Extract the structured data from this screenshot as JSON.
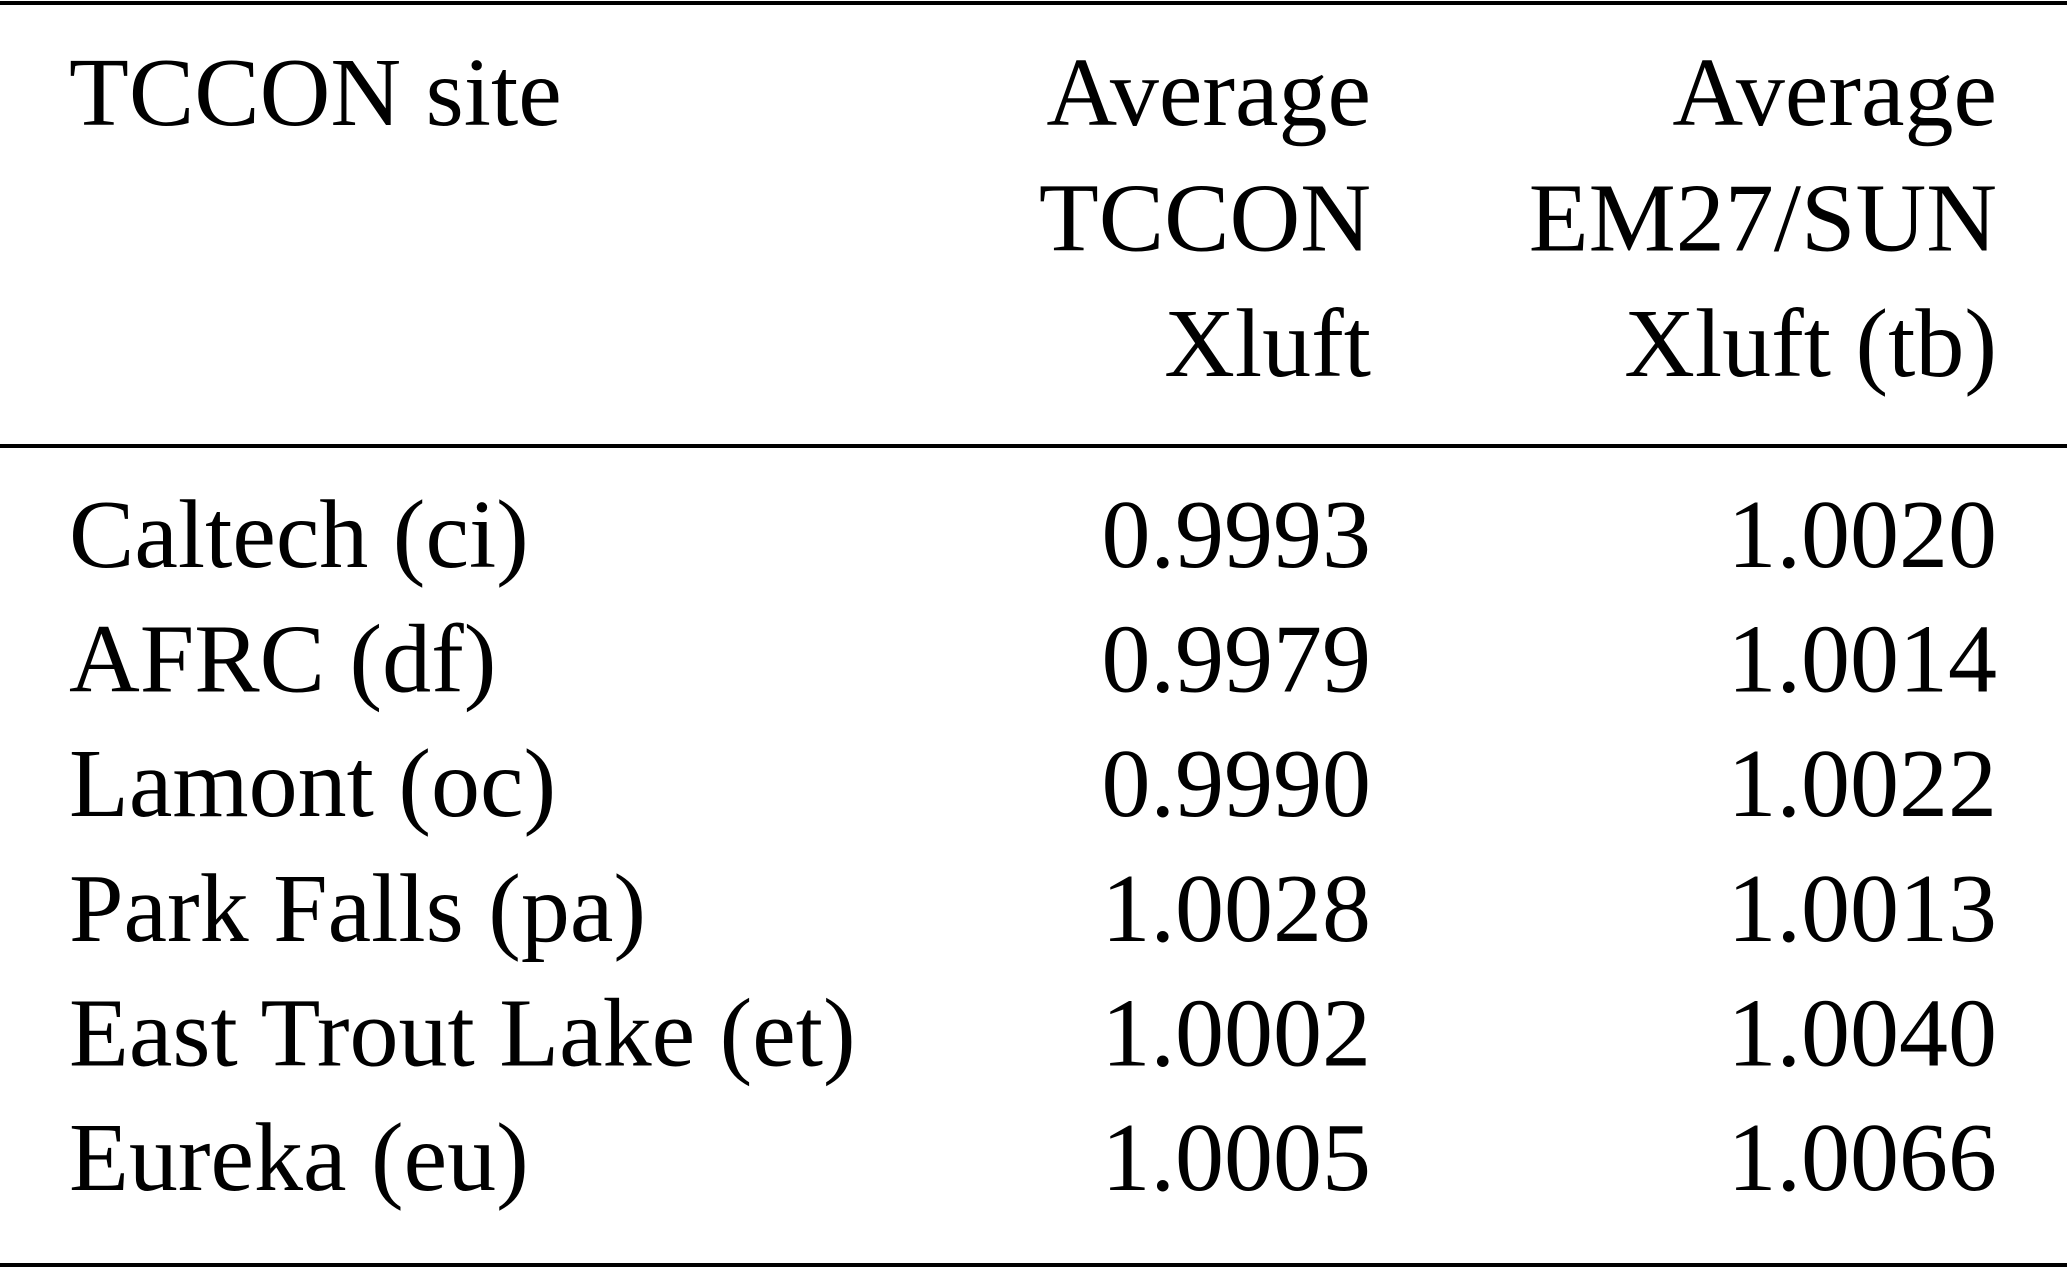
{
  "table": {
    "header": [
      [
        "TCCON site"
      ],
      [
        "Average",
        "TCCON",
        "Xluft"
      ],
      [
        "Average",
        "EM27/SUN",
        "Xluft (tb)"
      ]
    ],
    "rows": [
      [
        "Caltech (ci)",
        "0.9993",
        "1.0020"
      ],
      [
        "AFRC (df)",
        "0.9979",
        "1.0014"
      ],
      [
        "Lamont (oc)",
        "0.9990",
        "1.0022"
      ],
      [
        "Park Falls (pa)",
        "1.0028",
        "1.0013"
      ],
      [
        "East Trout Lake (et)",
        "1.0002",
        "1.0040"
      ],
      [
        "Eureka (eu)",
        "1.0005",
        "1.0066"
      ]
    ]
  }
}
